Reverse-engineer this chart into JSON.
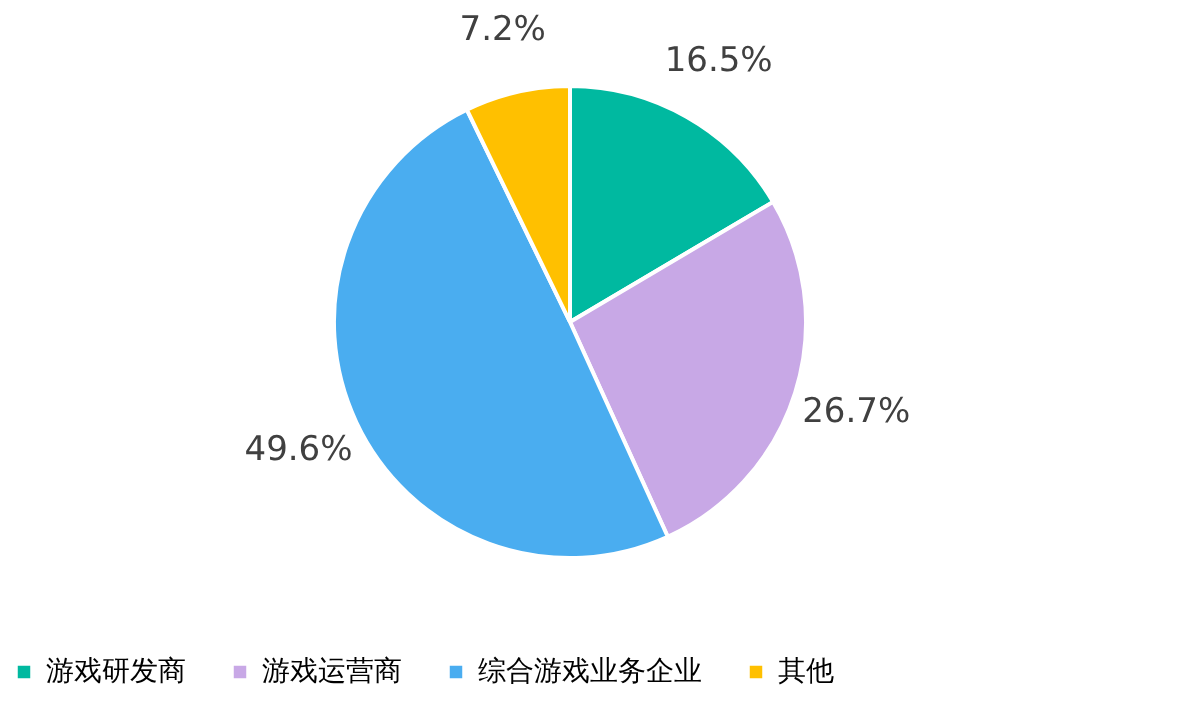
{
  "chart_data": {
    "type": "pie",
    "categories": [
      "游戏研发商",
      "游戏运营商",
      "综合游戏业务企业",
      "其他"
    ],
    "values": [
      16.5,
      26.7,
      49.6,
      7.2
    ],
    "colors": [
      "#00b9a0",
      "#c8a8e6",
      "#4aadf0",
      "#ffc000"
    ],
    "value_labels": [
      "16.5%",
      "26.7%",
      "49.6%",
      "7.2%"
    ],
    "legend": "bottom"
  }
}
